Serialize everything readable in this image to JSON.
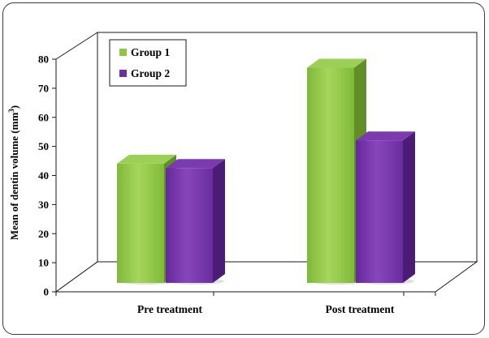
{
  "chart_data": {
    "type": "bar",
    "title": "",
    "xlabel": "",
    "ylabel": "Mean of dentin volume (mm³)",
    "ylabel_main": "Mean of dentin volume (mm",
    "ylabel_sup": "3",
    "ylabel_end": ")",
    "ylim": [
      0,
      80
    ],
    "yticks": [
      "0",
      "10",
      "20",
      "30",
      "40",
      "50",
      "60",
      "70",
      "80"
    ],
    "categories": [
      "Pre treatment",
      "Post treatment"
    ],
    "series": [
      {
        "name": "Group 1",
        "values": [
          41,
          74
        ],
        "color": "#8dc63f"
      },
      {
        "name": "Group 2",
        "values": [
          39.5,
          49
        ],
        "color": "#7030a0"
      }
    ],
    "legend_position": "top-left",
    "grid": false,
    "style": "3d-column"
  }
}
